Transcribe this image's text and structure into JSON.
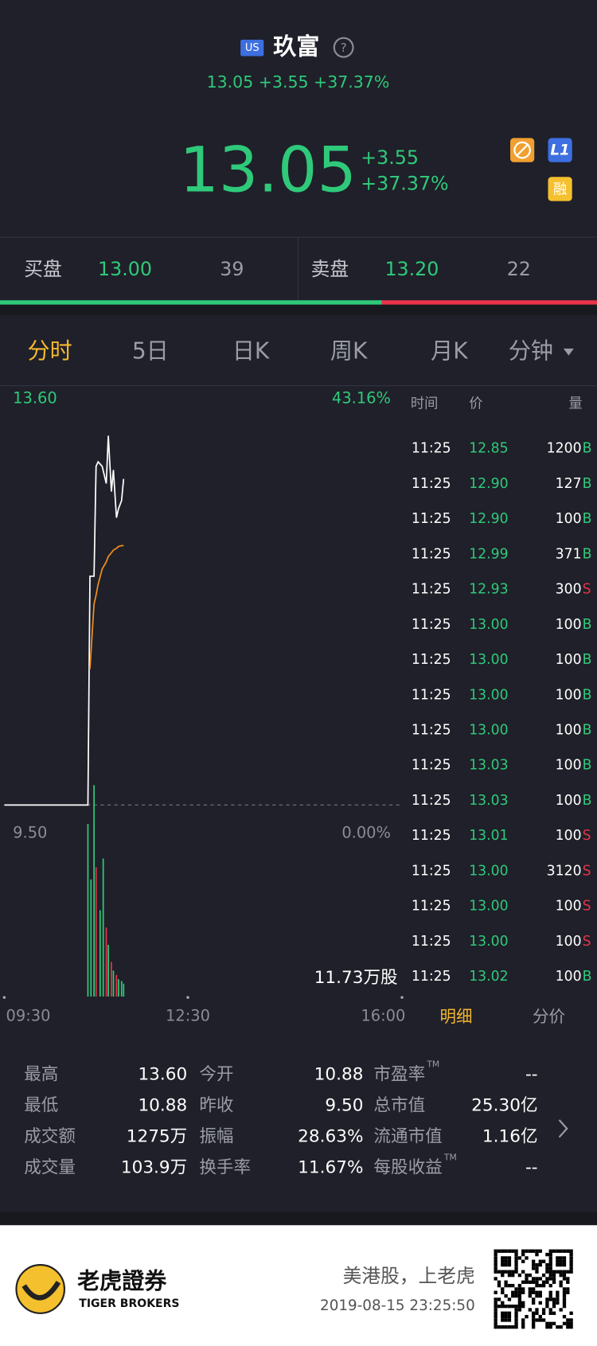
{
  "header": {
    "market_badge": "US",
    "name": "玖富",
    "subtitle": "13.05 +3.55 +37.37%"
  },
  "quote": {
    "price": "13.05",
    "change": "+3.55",
    "change_pct": "+37.37%",
    "badges": [
      "L1",
      "融"
    ]
  },
  "order_book": {
    "bid_label": "买盘",
    "bid_price": "13.00",
    "bid_size": 39,
    "ask_label": "卖盘",
    "ask_price": "13.20",
    "ask_size": 22
  },
  "tabs": [
    "分时",
    "5日",
    "日K",
    "周K",
    "月K",
    "分钟"
  ],
  "chart_data": {
    "type": "line",
    "x": [
      "09:30",
      "10:52",
      "10:54",
      "10:58",
      "11:00",
      "11:02",
      "11:06",
      "11:10",
      "11:12",
      "11:15",
      "11:17",
      "11:20",
      "11:22",
      "11:25",
      "11:27"
    ],
    "series": [
      {
        "color": "#ffffff",
        "values": [
          9.5,
          9.5,
          12.04,
          12.04,
          13.26,
          13.31,
          13.26,
          13.07,
          13.6,
          12.98,
          13.22,
          12.69,
          12.79,
          12.88,
          13.12
        ]
      },
      {
        "color": "#f0901e",
        "values": [
          null,
          null,
          11.01,
          11.73,
          11.83,
          11.95,
          12.12,
          12.2,
          12.26,
          12.3,
          12.33,
          12.35,
          12.37,
          12.38,
          12.38
        ]
      }
    ],
    "xlim": [
      "09:30",
      "16:00"
    ],
    "xticks": [
      "09:30",
      "12:30",
      "16:00"
    ],
    "ylim": [
      9.5,
      13.6
    ],
    "yticks": [
      {
        "value": 13.6,
        "label": "13.60"
      },
      {
        "value": 9.5,
        "label": "9.50"
      }
    ],
    "y2lim": [
      0,
      43.16
    ],
    "y2ticks": [
      {
        "value": 43.16,
        "label": "43.16%"
      },
      {
        "value": 0,
        "label": "0.00%"
      }
    ],
    "volume": {
      "x": [
        "10:52",
        "10:55",
        "10:58",
        "11:00",
        "11:04",
        "11:07",
        "11:10",
        "11:12",
        "11:15",
        "11:17",
        "11:20",
        "11:22",
        "11:25",
        "11:27"
      ],
      "values": [
        9.58,
        6.5,
        11.73,
        7.18,
        4.79,
        7.66,
        3.83,
        2.87,
        1.92,
        1.44,
        1.2,
        0.96,
        0.86,
        0.72
      ],
      "colors": [
        "#2fc97a",
        "#2fc97a",
        "#2fc97a",
        "#e8334a",
        "#2fc97a",
        "#2fc97a",
        "#e8334a",
        "#2fc97a",
        "#e8334a",
        "#2fc97a",
        "#e8334a",
        "#2fc97a",
        "#2fc97a",
        "#2fc97a"
      ],
      "ylim": [
        0,
        11.73
      ],
      "max_label": "11.73万股"
    }
  },
  "trades": {
    "headers": [
      "时间",
      "价",
      "量"
    ],
    "rows": [
      [
        "11:25",
        "12.85",
        "1200",
        "B"
      ],
      [
        "11:25",
        "12.90",
        "127",
        "B"
      ],
      [
        "11:25",
        "12.90",
        "100",
        "B"
      ],
      [
        "11:25",
        "12.99",
        "371",
        "B"
      ],
      [
        "11:25",
        "12.93",
        "300",
        "S"
      ],
      [
        "11:25",
        "13.00",
        "100",
        "B"
      ],
      [
        "11:25",
        "13.00",
        "100",
        "B"
      ],
      [
        "11:25",
        "13.00",
        "100",
        "B"
      ],
      [
        "11:25",
        "13.00",
        "100",
        "B"
      ],
      [
        "11:25",
        "13.03",
        "100",
        "B"
      ],
      [
        "11:25",
        "13.03",
        "100",
        "B"
      ],
      [
        "11:25",
        "13.01",
        "100",
        "S"
      ],
      [
        "11:25",
        "13.00",
        "3120",
        "S"
      ],
      [
        "11:25",
        "13.00",
        "100",
        "S"
      ],
      [
        "11:25",
        "13.00",
        "100",
        "S"
      ],
      [
        "11:25",
        "13.02",
        "100",
        "B"
      ]
    ],
    "tabs": [
      "明细",
      "分价"
    ]
  },
  "stats": {
    "superscript": "TM",
    "rows": [
      [
        {
          "label": "最高",
          "value": "13.60"
        },
        {
          "label": "今开",
          "value": "10.88"
        },
        {
          "label": "市盈率",
          "value": "--",
          "tm": true
        }
      ],
      [
        {
          "label": "最低",
          "value": "10.88"
        },
        {
          "label": "昨收",
          "value": "9.50"
        },
        {
          "label": "总市值",
          "value": "25.30亿"
        }
      ],
      [
        {
          "label": "成交额",
          "value": "1275万"
        },
        {
          "label": "振幅",
          "value": "28.63%"
        },
        {
          "label": "流通市值",
          "value": "1.16亿"
        }
      ],
      [
        {
          "label": "成交量",
          "value": "103.9万"
        },
        {
          "label": "换手率",
          "value": "11.67%"
        },
        {
          "label": "每股收益",
          "value": "--",
          "tm": true
        }
      ]
    ]
  },
  "footer": {
    "brand": "老虎證券",
    "brand_en": "TIGER BROKERS",
    "slogan": "美港股，上老虎",
    "timestamp": "2019-08-15 23:25:50"
  }
}
